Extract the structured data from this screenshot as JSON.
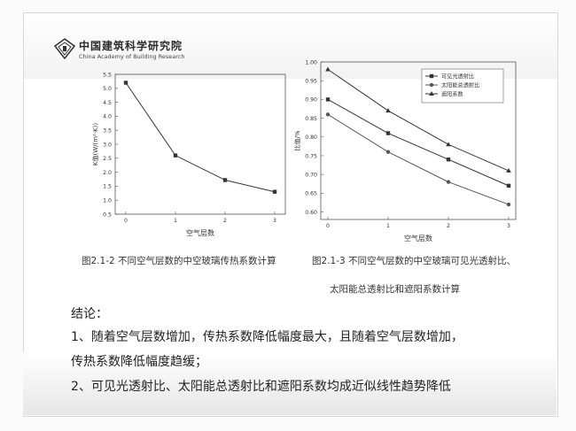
{
  "header": {
    "org_cn": "中国建筑科学研究院",
    "org_en": "China Academy of Building Research",
    "logo_icon": "cabr-logo-icon"
  },
  "chart_data": [
    {
      "type": "line",
      "title": "",
      "xlabel": "空气层数",
      "ylabel": "K值(W/(m²·K))",
      "x": [
        0,
        1,
        2,
        3
      ],
      "x_ticks": [
        "0",
        "1",
        "2",
        "3"
      ],
      "series": [
        {
          "values": [
            5.2,
            2.6,
            1.72,
            1.3
          ],
          "color": "#333333"
        }
      ],
      "ylim": [
        0.5,
        5.5
      ],
      "y_ticks": [
        "0.5",
        "1.0",
        "1.5",
        "2.0",
        "2.5",
        "3.0",
        "3.5",
        "4.0",
        "4.5",
        "5.0",
        "5.5"
      ],
      "grid": false
    },
    {
      "type": "line",
      "title": "",
      "xlabel": "空气层数",
      "ylabel": "比值/%",
      "x": [
        0,
        1,
        2,
        3
      ],
      "x_ticks": [
        "0",
        "1",
        "2",
        "3"
      ],
      "series": [
        {
          "name": "可见光透射比",
          "values": [
            0.9,
            0.81,
            0.74,
            0.67
          ],
          "color": "#333333",
          "marker": "square"
        },
        {
          "name": "太阳能总透射比",
          "values": [
            0.86,
            0.76,
            0.68,
            0.62
          ],
          "color": "#555555",
          "marker": "circle"
        },
        {
          "name": "遮阳系数",
          "values": [
            0.98,
            0.87,
            0.78,
            0.71
          ],
          "color": "#333333",
          "marker": "triangle"
        }
      ],
      "ylim": [
        0.58,
        1.0
      ],
      "y_ticks": [
        "0.60",
        "0.65",
        "0.70",
        "0.75",
        "0.80",
        "0.85",
        "0.90",
        "0.95",
        "1.00"
      ],
      "legend_position": "top-right",
      "grid": false
    }
  ],
  "captions": {
    "left": "图2.1-2 不同空气层数的中空玻璃传热系数计算",
    "right_line1": "图2.1-3 不同空气层数的中空玻璃可见光透射比、",
    "right_line2": "太阳能总透射比和遮阳系数计算"
  },
  "conclusion": {
    "title": "结论：",
    "lines": [
      "1、随着空气层数增加，传热系数降低幅度最大，且随着空气层数增加，",
      "传热系数降低幅度趋缓；",
      "2、可见光透射比、太阳能总透射比和遮阳系数均成近似线性趋势降低"
    ]
  }
}
